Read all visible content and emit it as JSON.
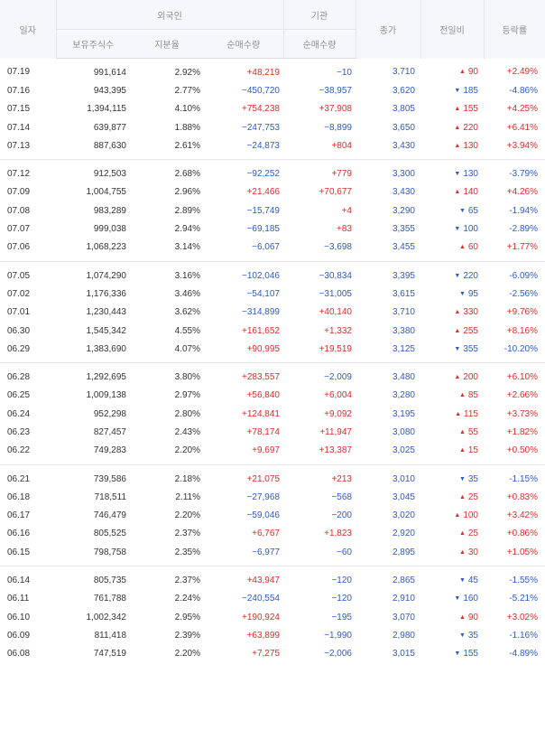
{
  "headers": {
    "date": "일자",
    "foreign": "외국인",
    "institution": "기관",
    "close": "종가",
    "change": "전일비",
    "rate": "등락률",
    "foreign_holdings": "보유주식수",
    "foreign_ratio": "지분율",
    "foreign_net": "순매수량",
    "inst_net": "순매수량"
  },
  "colors": {
    "up": "#e12a2a",
    "down": "#2c5ac8",
    "header_bg": "#f6f7fa"
  },
  "groups": [
    [
      {
        "date": "07.19",
        "holdings": "991,614",
        "ratio": "2.92%",
        "fnet": "+48,219",
        "inet": "−10",
        "close": "3,710",
        "dir": "up",
        "chg": "90",
        "rate": "+2.49%"
      },
      {
        "date": "07.16",
        "holdings": "943,395",
        "ratio": "2.77%",
        "fnet": "−450,720",
        "inet": "−38,957",
        "close": "3,620",
        "dir": "down",
        "chg": "185",
        "rate": "-4.86%"
      },
      {
        "date": "07.15",
        "holdings": "1,394,115",
        "ratio": "4.10%",
        "fnet": "+754,238",
        "inet": "+37,908",
        "close": "3,805",
        "dir": "up",
        "chg": "155",
        "rate": "+4.25%"
      },
      {
        "date": "07.14",
        "holdings": "639,877",
        "ratio": "1.88%",
        "fnet": "−247,753",
        "inet": "−8,899",
        "close": "3,650",
        "dir": "up",
        "chg": "220",
        "rate": "+6.41%"
      },
      {
        "date": "07.13",
        "holdings": "887,630",
        "ratio": "2.61%",
        "fnet": "−24,873",
        "inet": "+804",
        "close": "3,430",
        "dir": "up",
        "chg": "130",
        "rate": "+3.94%"
      }
    ],
    [
      {
        "date": "07.12",
        "holdings": "912,503",
        "ratio": "2.68%",
        "fnet": "−92,252",
        "inet": "+779",
        "close": "3,300",
        "dir": "down",
        "chg": "130",
        "rate": "-3.79%"
      },
      {
        "date": "07.09",
        "holdings": "1,004,755",
        "ratio": "2.96%",
        "fnet": "+21,466",
        "inet": "+70,677",
        "close": "3,430",
        "dir": "up",
        "chg": "140",
        "rate": "+4.26%"
      },
      {
        "date": "07.08",
        "holdings": "983,289",
        "ratio": "2.89%",
        "fnet": "−15,749",
        "inet": "+4",
        "close": "3,290",
        "dir": "down",
        "chg": "65",
        "rate": "-1.94%"
      },
      {
        "date": "07.07",
        "holdings": "999,038",
        "ratio": "2.94%",
        "fnet": "−69,185",
        "inet": "+83",
        "close": "3,355",
        "dir": "down",
        "chg": "100",
        "rate": "-2.89%"
      },
      {
        "date": "07.06",
        "holdings": "1,068,223",
        "ratio": "3.14%",
        "fnet": "−6,067",
        "inet": "−3,698",
        "close": "3,455",
        "dir": "up",
        "chg": "60",
        "rate": "+1.77%"
      }
    ],
    [
      {
        "date": "07.05",
        "holdings": "1,074,290",
        "ratio": "3.16%",
        "fnet": "−102,046",
        "inet": "−30,834",
        "close": "3,395",
        "dir": "down",
        "chg": "220",
        "rate": "-6.09%"
      },
      {
        "date": "07.02",
        "holdings": "1,176,336",
        "ratio": "3.46%",
        "fnet": "−54,107",
        "inet": "−31,005",
        "close": "3,615",
        "dir": "down",
        "chg": "95",
        "rate": "-2.56%"
      },
      {
        "date": "07.01",
        "holdings": "1,230,443",
        "ratio": "3.62%",
        "fnet": "−314,899",
        "inet": "+40,140",
        "close": "3,710",
        "dir": "up",
        "chg": "330",
        "rate": "+9.76%"
      },
      {
        "date": "06.30",
        "holdings": "1,545,342",
        "ratio": "4.55%",
        "fnet": "+161,652",
        "inet": "+1,332",
        "close": "3,380",
        "dir": "up",
        "chg": "255",
        "rate": "+8.16%"
      },
      {
        "date": "06.29",
        "holdings": "1,383,690",
        "ratio": "4.07%",
        "fnet": "+90,995",
        "inet": "+19,519",
        "close": "3,125",
        "dir": "down",
        "chg": "355",
        "rate": "-10.20%"
      }
    ],
    [
      {
        "date": "06.28",
        "holdings": "1,292,695",
        "ratio": "3.80%",
        "fnet": "+283,557",
        "inet": "−2,009",
        "close": "3,480",
        "dir": "up",
        "chg": "200",
        "rate": "+6.10%"
      },
      {
        "date": "06.25",
        "holdings": "1,009,138",
        "ratio": "2.97%",
        "fnet": "+56,840",
        "inet": "+6,004",
        "close": "3,280",
        "dir": "up",
        "chg": "85",
        "rate": "+2.66%"
      },
      {
        "date": "06.24",
        "holdings": "952,298",
        "ratio": "2.80%",
        "fnet": "+124,841",
        "inet": "+9,092",
        "close": "3,195",
        "dir": "up",
        "chg": "115",
        "rate": "+3.73%"
      },
      {
        "date": "06.23",
        "holdings": "827,457",
        "ratio": "2.43%",
        "fnet": "+78,174",
        "inet": "+11,947",
        "close": "3,080",
        "dir": "up",
        "chg": "55",
        "rate": "+1.82%"
      },
      {
        "date": "06.22",
        "holdings": "749,283",
        "ratio": "2.20%",
        "fnet": "+9,697",
        "inet": "+13,387",
        "close": "3,025",
        "dir": "up",
        "chg": "15",
        "rate": "+0.50%"
      }
    ],
    [
      {
        "date": "06.21",
        "holdings": "739,586",
        "ratio": "2.18%",
        "fnet": "+21,075",
        "inet": "+213",
        "close": "3,010",
        "dir": "down",
        "chg": "35",
        "rate": "-1.15%"
      },
      {
        "date": "06.18",
        "holdings": "718,511",
        "ratio": "2.11%",
        "fnet": "−27,968",
        "inet": "−568",
        "close": "3,045",
        "dir": "up",
        "chg": "25",
        "rate": "+0.83%"
      },
      {
        "date": "06.17",
        "holdings": "746,479",
        "ratio": "2.20%",
        "fnet": "−59,046",
        "inet": "−200",
        "close": "3,020",
        "dir": "up",
        "chg": "100",
        "rate": "+3.42%"
      },
      {
        "date": "06.16",
        "holdings": "805,525",
        "ratio": "2.37%",
        "fnet": "+6,767",
        "inet": "+1,823",
        "close": "2,920",
        "dir": "up",
        "chg": "25",
        "rate": "+0.86%"
      },
      {
        "date": "06.15",
        "holdings": "798,758",
        "ratio": "2.35%",
        "fnet": "−6,977",
        "inet": "−60",
        "close": "2,895",
        "dir": "up",
        "chg": "30",
        "rate": "+1.05%"
      }
    ],
    [
      {
        "date": "06.14",
        "holdings": "805,735",
        "ratio": "2.37%",
        "fnet": "+43,947",
        "inet": "−120",
        "close": "2,865",
        "dir": "down",
        "chg": "45",
        "rate": "-1.55%"
      },
      {
        "date": "06.11",
        "holdings": "761,788",
        "ratio": "2.24%",
        "fnet": "−240,554",
        "inet": "−120",
        "close": "2,910",
        "dir": "down",
        "chg": "160",
        "rate": "-5.21%"
      },
      {
        "date": "06.10",
        "holdings": "1,002,342",
        "ratio": "2.95%",
        "fnet": "+190,924",
        "inet": "−195",
        "close": "3,070",
        "dir": "up",
        "chg": "90",
        "rate": "+3.02%"
      },
      {
        "date": "06.09",
        "holdings": "811,418",
        "ratio": "2.39%",
        "fnet": "+63,899",
        "inet": "−1,990",
        "close": "2,980",
        "dir": "down",
        "chg": "35",
        "rate": "-1.16%"
      },
      {
        "date": "06.08",
        "holdings": "747,519",
        "ratio": "2.20%",
        "fnet": "+7,275",
        "inet": "−2,006",
        "close": "3,015",
        "dir": "down",
        "chg": "155",
        "rate": "-4.89%"
      }
    ]
  ]
}
